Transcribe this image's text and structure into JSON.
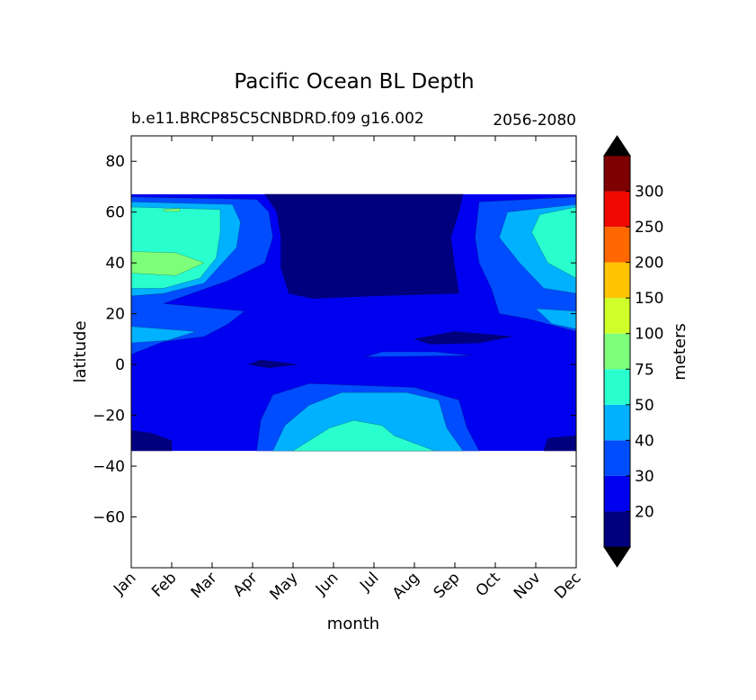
{
  "chart_data": {
    "type": "contour",
    "title": "Pacific Ocean BL Depth",
    "subtitle_left": "b.e11.BRCP85C5CNBDRD.f09 g16.002",
    "subtitle_right": "2056-2080",
    "xlabel": "month",
    "ylabel": "latitude",
    "colorbar_label": "meters",
    "x_categories": [
      "Jan",
      "Feb",
      "Mar",
      "Apr",
      "May",
      "Jun",
      "Jul",
      "Aug",
      "Sep",
      "Oct",
      "Nov",
      "Dec"
    ],
    "xlim": [
      0,
      11
    ],
    "ylim": [
      -80,
      90
    ],
    "y_ticks": [
      80,
      60,
      40,
      20,
      0,
      -20,
      -40,
      -60
    ],
    "data_lat_range": [
      -34,
      67
    ],
    "levels": [
      20,
      30,
      40,
      50,
      75,
      100,
      150,
      200,
      250,
      300
    ],
    "colorbar_ticks": [
      20,
      30,
      40,
      50,
      75,
      100,
      150,
      200,
      250,
      300
    ],
    "colorbar_extend": "both",
    "colors": [
      "#00007f",
      "#0000f1",
      "#004dff",
      "#00b1ff",
      "#29ffce",
      "#7dff7a",
      "#ceff29",
      "#ffc400",
      "#ff6800",
      "#f10800",
      "#7f0000"
    ],
    "extend_color": "#000000",
    "grid": false,
    "contour_regions": [
      {
        "level_index": 1,
        "polygon": [
          [
            0,
            67
          ],
          [
            11,
            67
          ],
          [
            11,
            -34
          ],
          [
            0,
            -34
          ]
        ]
      },
      {
        "level_index": 0,
        "polygon": [
          [
            3.3,
            67
          ],
          [
            8.2,
            67
          ],
          [
            8.1,
            60
          ],
          [
            7.9,
            50
          ],
          [
            8.0,
            38
          ],
          [
            8.1,
            28
          ],
          [
            6,
            27
          ],
          [
            4.5,
            26
          ],
          [
            3.9,
            28
          ],
          [
            3.7,
            38
          ],
          [
            3.7,
            50
          ],
          [
            3.6,
            60
          ]
        ]
      },
      {
        "level_index": 0,
        "polygon": [
          [
            7.0,
            10
          ],
          [
            8.0,
            13
          ],
          [
            9.4,
            11
          ],
          [
            8.6,
            8.5
          ],
          [
            7.4,
            8
          ]
        ]
      },
      {
        "level_index": 0,
        "polygon": [
          [
            2.9,
            0
          ],
          [
            3.2,
            1.8
          ],
          [
            4.1,
            0
          ],
          [
            3.4,
            -1.3
          ]
        ]
      },
      {
        "level_index": 0,
        "polygon": [
          [
            0,
            -34
          ],
          [
            1.0,
            -34
          ],
          [
            1.0,
            -30
          ],
          [
            0.5,
            -27
          ],
          [
            0,
            -26
          ]
        ]
      },
      {
        "level_index": 0,
        "polygon": [
          [
            11,
            -34
          ],
          [
            10.2,
            -34
          ],
          [
            10.3,
            -29
          ],
          [
            11,
            -28
          ]
        ]
      },
      {
        "level_index": 2,
        "polygon": [
          [
            0,
            66
          ],
          [
            3.1,
            65
          ],
          [
            3.4,
            60
          ],
          [
            3.5,
            50
          ],
          [
            3.3,
            40
          ],
          [
            2.4,
            33
          ],
          [
            1.5,
            28
          ],
          [
            0.8,
            24
          ],
          [
            1.5,
            23
          ],
          [
            2.8,
            21
          ],
          [
            2.4,
            16
          ],
          [
            1.8,
            11
          ],
          [
            0.8,
            9
          ],
          [
            0,
            4
          ]
        ]
      },
      {
        "level_index": 2,
        "polygon": [
          [
            11,
            66
          ],
          [
            8.6,
            64
          ],
          [
            8.5,
            50
          ],
          [
            8.6,
            40
          ],
          [
            8.9,
            30
          ],
          [
            9.1,
            20
          ],
          [
            9.8,
            18
          ],
          [
            11,
            13
          ]
        ]
      },
      {
        "level_index": 2,
        "polygon": [
          [
            3.1,
            -34
          ],
          [
            8.6,
            -34
          ],
          [
            8.3,
            -25
          ],
          [
            8.1,
            -14
          ],
          [
            7.0,
            -9
          ],
          [
            4.4,
            -7.5
          ],
          [
            3.5,
            -12
          ],
          [
            3.2,
            -22
          ]
        ]
      },
      {
        "level_index": 2,
        "polygon": [
          [
            5.8,
            3
          ],
          [
            8.4,
            3.5
          ],
          [
            7.5,
            5
          ],
          [
            6.2,
            5
          ]
        ]
      },
      {
        "level_index": 3,
        "polygon": [
          [
            0,
            64
          ],
          [
            2.5,
            63
          ],
          [
            2.7,
            56
          ],
          [
            2.6,
            46
          ],
          [
            1.8,
            32
          ],
          [
            0.8,
            28
          ],
          [
            0,
            27
          ]
        ]
      },
      {
        "level_index": 3,
        "polygon": [
          [
            0,
            15
          ],
          [
            1.6,
            13
          ],
          [
            0.9,
            9.5
          ],
          [
            0,
            8.5
          ]
        ]
      },
      {
        "level_index": 3,
        "polygon": [
          [
            11,
            63
          ],
          [
            9.3,
            60
          ],
          [
            9.1,
            50
          ],
          [
            9.6,
            40
          ],
          [
            10.2,
            30
          ],
          [
            11,
            28
          ]
        ]
      },
      {
        "level_index": 3,
        "polygon": [
          [
            10.0,
            22
          ],
          [
            11,
            21
          ],
          [
            11,
            14
          ],
          [
            10.4,
            16
          ]
        ]
      },
      {
        "level_index": 3,
        "polygon": [
          [
            3.5,
            -34
          ],
          [
            8.2,
            -34
          ],
          [
            7.8,
            -25
          ],
          [
            7.6,
            -14
          ],
          [
            6.8,
            -11
          ],
          [
            5.2,
            -11
          ],
          [
            4.4,
            -16
          ],
          [
            3.8,
            -24
          ]
        ]
      },
      {
        "level_index": 4,
        "polygon": [
          [
            0,
            62
          ],
          [
            2.2,
            61
          ],
          [
            2.2,
            52
          ],
          [
            2.1,
            42
          ],
          [
            1.7,
            34
          ],
          [
            0.8,
            30
          ],
          [
            0,
            30
          ]
        ]
      },
      {
        "level_index": 4,
        "polygon": [
          [
            11,
            62
          ],
          [
            10.1,
            59
          ],
          [
            9.9,
            52
          ],
          [
            10.3,
            40
          ],
          [
            11,
            34
          ]
        ]
      },
      {
        "level_index": 4,
        "polygon": [
          [
            4.0,
            -34
          ],
          [
            7.5,
            -34
          ],
          [
            6.5,
            -28
          ],
          [
            6.2,
            -24
          ],
          [
            5.5,
            -22
          ],
          [
            4.9,
            -25
          ]
        ]
      },
      {
        "level_index": 5,
        "polygon": [
          [
            0,
            44.5
          ],
          [
            1.1,
            44
          ],
          [
            1.8,
            40
          ],
          [
            1.1,
            35
          ],
          [
            0,
            36
          ]
        ]
      },
      {
        "level_index": 5,
        "polygon": [
          [
            0.8,
            61
          ],
          [
            1.2,
            61.5
          ],
          [
            1.2,
            60.2
          ],
          [
            0.8,
            60.3
          ]
        ]
      }
    ]
  }
}
